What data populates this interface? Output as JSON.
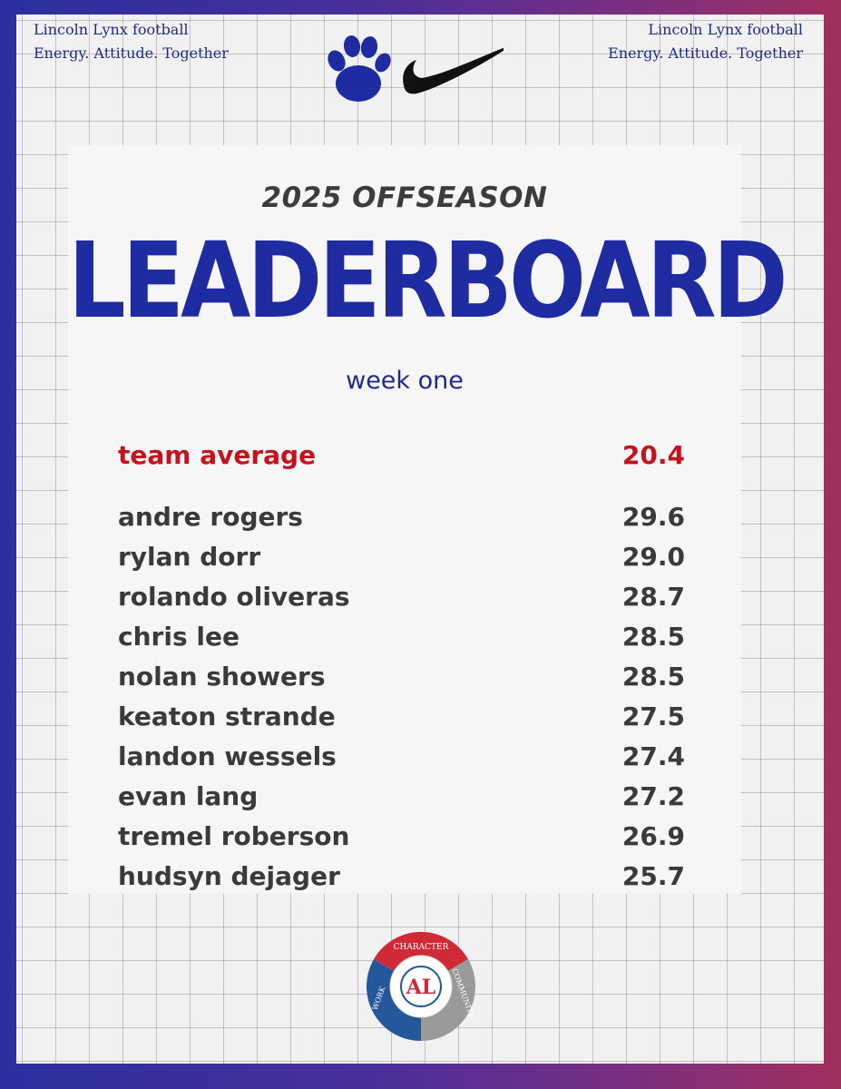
{
  "header": {
    "left_line1": "Lincoln Lynx football",
    "left_line2": "Energy. Attitude. Together",
    "right_line1": "Lincoln Lynx football",
    "right_line2": "Energy. Attitude. Together"
  },
  "title": {
    "small": "2025 OFFSEASON",
    "big": "LEADERBOARD",
    "subtitle": "week one"
  },
  "team_average": {
    "label": "team average",
    "value": "20.4"
  },
  "players": [
    {
      "name": "andre rogers",
      "score": "29.6"
    },
    {
      "name": "rylan dorr",
      "score": "29.0"
    },
    {
      "name": "rolando oliveras",
      "score": "28.7"
    },
    {
      "name": "chris lee",
      "score": "28.5"
    },
    {
      "name": "nolan showers",
      "score": "28.5"
    },
    {
      "name": "keaton strande",
      "score": "27.5"
    },
    {
      "name": "landon wessels",
      "score": "27.4"
    },
    {
      "name": "evan lang",
      "score": "27.2"
    },
    {
      "name": "tremel roberson",
      "score": "26.9"
    },
    {
      "name": "hudsyn dejager",
      "score": "25.7"
    }
  ],
  "badge": {
    "center": "AL",
    "top": "CHARACTER",
    "right": "COMMUNITY",
    "left": "WORK",
    "colors": {
      "red": "#cf2a36",
      "blue": "#24589a",
      "gray": "#9a9a9a"
    }
  },
  "colors": {
    "brand_blue": "#1f2ba0",
    "accent_red": "#c4131c",
    "text_dark": "#3a3a3a"
  },
  "icons": [
    "paw-print-icon",
    "swoosh-icon"
  ]
}
